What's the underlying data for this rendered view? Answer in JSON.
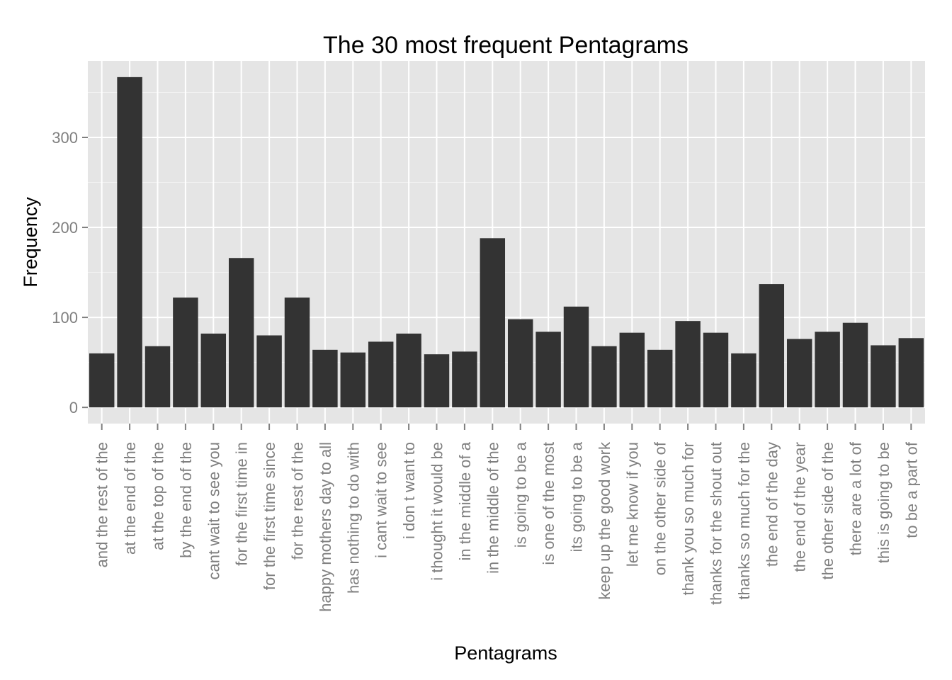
{
  "chart_data": {
    "type": "bar",
    "title": "The 30 most frequent Pentagrams",
    "xlabel": "Pentagrams",
    "ylabel": "Frequency",
    "ylim": [
      -18,
      385
    ],
    "yticks": [
      0,
      100,
      200,
      300
    ],
    "grid": true,
    "colors": {
      "panel": "#e5e5e5",
      "grid_major": "#ffffff",
      "grid_minor": "#f2f2f2",
      "bar": "#333333",
      "tick_label": "#7f7f7f",
      "tick_mark": "#7f7f7f"
    },
    "categories": [
      "and the rest of the",
      "at the end of the",
      "at the top of the",
      "by the end of the",
      "cant wait to see you",
      "for the first time in",
      "for the first time since",
      "for the rest of the",
      "happy mothers day to all",
      "has nothing to do with",
      "i cant wait to see",
      "i don t want to",
      "i thought it would be",
      "in the middle of a",
      "in the middle of the",
      "is going to be a",
      "is one of the most",
      "its going to be a",
      "keep up the good work",
      "let me know if you",
      "on the other side of",
      "thank you so much for",
      "thanks for the shout out",
      "thanks so much for the",
      "the end of the day",
      "the end of the year",
      "the other side of the",
      "there are a lot of",
      "this is going to be",
      "to be a part of"
    ],
    "values": [
      60,
      367,
      68,
      122,
      82,
      166,
      80,
      122,
      64,
      61,
      73,
      82,
      59,
      62,
      188,
      98,
      84,
      112,
      68,
      83,
      64,
      96,
      83,
      60,
      137,
      76,
      84,
      94,
      69,
      77
    ]
  }
}
